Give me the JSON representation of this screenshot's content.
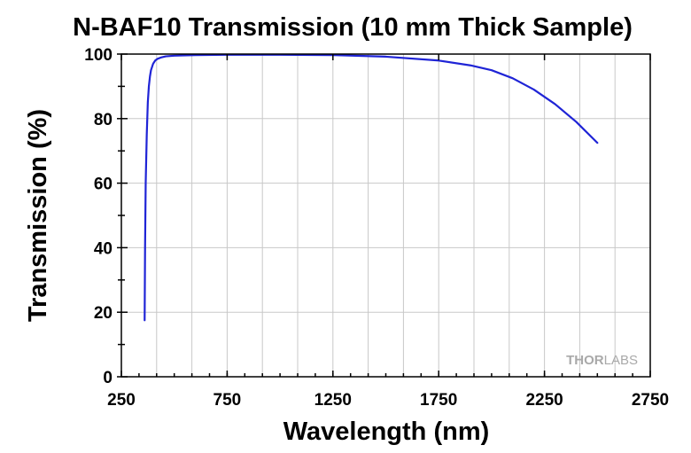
{
  "chart_data": {
    "type": "line",
    "title": "N-BAF10 Transmission (10 mm Thick Sample)",
    "xlabel": "Wavelength (nm)",
    "ylabel": "Transmission (%)",
    "xlim": [
      250,
      2750
    ],
    "ylim": [
      0,
      100
    ],
    "xticks": [
      250,
      750,
      1250,
      1750,
      2250,
      2750
    ],
    "yticks": [
      0,
      20,
      40,
      60,
      80,
      100
    ],
    "x_minor_step": 166.67,
    "y_minor_step": 10,
    "grid": true,
    "legend": "none",
    "series": [
      {
        "color": "#1f24d6",
        "x": [
          360,
          362,
          365,
          370,
          375,
          380,
          385,
          390,
          395,
          400,
          410,
          420,
          440,
          460,
          500,
          600,
          750,
          1000,
          1250,
          1500,
          1750,
          1900,
          2000,
          2100,
          2200,
          2300,
          2400,
          2500
        ],
        "y": [
          17.5,
          40,
          60,
          75,
          85,
          90,
          93,
          95,
          96,
          97,
          98,
          98.5,
          99,
          99.3,
          99.5,
          99.7,
          99.8,
          99.8,
          99.7,
          99.2,
          98,
          96.5,
          95,
          92.5,
          89,
          84.5,
          79,
          72.5
        ]
      }
    ]
  },
  "watermark": {
    "part1": "THOR",
    "part2": "LABS"
  }
}
